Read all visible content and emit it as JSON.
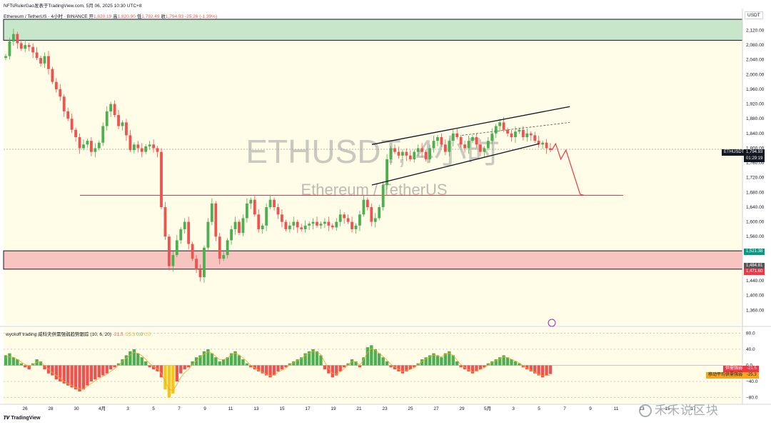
{
  "header": {
    "publisher_line": "NFTsRulerGao发表于TradingView.com,  5月 06, 2025 10:30 UTC+8",
    "symbol_desc": "Ethereum / TetherUS · 4小时 · BINANCE",
    "ohlc": {
      "open_label": "开",
      "open": "1,820.19",
      "high_label": "高",
      "high": "1,820.90",
      "low_label": "低",
      "low": "1,792.49",
      "close_label": "收",
      "close": "1,794.93",
      "change": "-25.26 (-1.39%)"
    },
    "currency": "USDT"
  },
  "watermark": {
    "symbol": "ETHUSDT, 4小时",
    "name": "Ethereum / TetherUS"
  },
  "price_tags": {
    "symbol": "ETHUSDT",
    "last_price": "1,794.93",
    "countdown": "01:29:19",
    "green_level": "1,521.38",
    "mid_level": "1,484.81",
    "red_level": "1,471.60"
  },
  "indicator": {
    "title": "wyckoff trading 威科夫供需强弱趋势跟踪 (10, 6, 20)",
    "v1": "-21.5",
    "v2": "-25.3",
    "v3": "0.0",
    "v4": "0.0",
    "tag1_label": "供需强弱",
    "tag1_value": "-21.5",
    "tag2_label": "移动平均供需强弱",
    "tag2_value": "-25.3"
  },
  "footer": {
    "brand": "TradingView",
    "credit": "禾禾说区块"
  },
  "colors": {
    "up": "#4caf50",
    "down": "#ef5350",
    "resistance_zone": "#c8e6c9",
    "support_zone": "#f8c4c0",
    "background_tint": "#fffde7",
    "channel": "#131722",
    "projection": "#f23645"
  },
  "chart_data": [
    {
      "type": "candlestick",
      "symbol": "ETHUSDT",
      "timeframe": "4小时",
      "y_axis": {
        "ticks": [
          2120,
          2080,
          2040,
          2000,
          1960,
          1920,
          1880,
          1840,
          1800,
          1760,
          1720,
          1680,
          1640,
          1600,
          1560,
          1520,
          1480,
          1440,
          1400,
          1360
        ],
        "tick_labels": [
          "2,120.00",
          "2,080.00",
          "2,040.00",
          "2,000.00",
          "1,960.00",
          "1,920.00",
          "1,880.00",
          "1,840.00",
          "1,800.00",
          "1,760.00",
          "1,720.00",
          "1,680.00",
          "1,640.00",
          "1,600.00",
          "1,560.00",
          "1,520.00",
          "1,480.00",
          "1,440.00",
          "1,400.00",
          "1,360.00"
        ],
        "range": [
          1320,
          2150
        ]
      },
      "x_axis": {
        "ticks": [
          "26",
          "28",
          "30",
          "4月",
          "3",
          "5",
          "7",
          "9",
          "11",
          "13",
          "15",
          "17",
          "19",
          "21",
          "23",
          "25",
          "27",
          "29",
          "5月",
          "3",
          "5",
          "7",
          "9",
          "11",
          "13",
          "15",
          "17"
        ]
      },
      "zones": [
        {
          "label": "resistance",
          "low": 2093,
          "high": 2150,
          "color": "#c8e6c9"
        },
        {
          "label": "support",
          "low": 1471.6,
          "high": 1521.38,
          "color": "#f8c4c0"
        }
      ],
      "levels": [
        {
          "value": 1797,
          "style": "dotted",
          "color": "#9598a1"
        },
        {
          "value": 1672,
          "style": "solid",
          "color": "#f23645"
        }
      ],
      "channel": {
        "upper": [
          {
            "x": "22",
            "y": 1810
          },
          {
            "x": "7",
            "y": 1913
          }
        ],
        "lower": [
          {
            "x": "22",
            "y": 1700
          },
          {
            "x": "5",
            "y": 1812
          }
        ],
        "mid_dashed": [
          {
            "x": "29",
            "y": 1835
          },
          {
            "x": "7",
            "y": 1870
          }
        ]
      },
      "projection": [
        {
          "x": "6",
          "y": 1795
        },
        {
          "x": "6.3",
          "y": 1812
        },
        {
          "x": "6.7",
          "y": 1770
        },
        {
          "x": "7.1",
          "y": 1795
        },
        {
          "x": "8.2",
          "y": 1675
        },
        {
          "x": "8.5",
          "y": 1672
        }
      ],
      "close_series": [
        2050,
        2090,
        2110,
        2085,
        2070,
        2080,
        2075,
        2060,
        2045,
        2030,
        2050,
        2015,
        1980,
        1960,
        1940,
        1900,
        1880,
        1850,
        1830,
        1800,
        1810,
        1820,
        1790,
        1800,
        1815,
        1860,
        1900,
        1920,
        1890,
        1860,
        1870,
        1835,
        1795,
        1810,
        1800,
        1790,
        1805,
        1810,
        1800,
        1790,
        1640,
        1560,
        1480,
        1510,
        1550,
        1580,
        1600,
        1540,
        1500,
        1470,
        1450,
        1530,
        1600,
        1650,
        1560,
        1500,
        1510,
        1550,
        1580,
        1600,
        1570,
        1610,
        1650,
        1660,
        1620,
        1580,
        1590,
        1640,
        1660,
        1640,
        1620,
        1600,
        1580,
        1590,
        1600,
        1585,
        1580,
        1590,
        1595,
        1600,
        1590,
        1595,
        1600,
        1590,
        1585,
        1600,
        1620,
        1610,
        1600,
        1580,
        1590,
        1620,
        1660,
        1640,
        1600,
        1610,
        1640,
        1700,
        1770,
        1800,
        1790,
        1780,
        1790,
        1780,
        1770,
        1790,
        1800,
        1790,
        1770,
        1800,
        1820,
        1830,
        1810,
        1790,
        1820,
        1840,
        1830,
        1810,
        1800,
        1820,
        1830,
        1810,
        1790,
        1800,
        1820,
        1840,
        1860,
        1870,
        1850,
        1840,
        1830,
        1845,
        1850,
        1830,
        1840,
        1835,
        1820,
        1810,
        1815,
        1800,
        1795
      ]
    },
    {
      "type": "bar",
      "name": "wyckoff trading 威科夫供需强弱趋势跟踪 (10, 6, 20)",
      "y_axis": {
        "ticks": [
          80,
          40,
          0,
          -40,
          -80
        ],
        "tick_labels": [
          "80.0",
          "40.0",
          "0.0",
          "−40.0",
          "−80.0"
        ],
        "range": [
          -95,
          95
        ]
      },
      "values": [
        25,
        30,
        20,
        15,
        5,
        -5,
        -10,
        5,
        15,
        10,
        -10,
        -20,
        -25,
        -35,
        -40,
        -45,
        -50,
        -55,
        -60,
        -65,
        -60,
        -50,
        -40,
        -35,
        -30,
        -25,
        -20,
        -10,
        -5,
        5,
        15,
        25,
        35,
        40,
        30,
        20,
        10,
        -5,
        -10,
        -15,
        -30,
        -60,
        -80,
        -70,
        -40,
        -20,
        -10,
        -5,
        10,
        20,
        25,
        35,
        40,
        30,
        20,
        10,
        15,
        20,
        30,
        35,
        25,
        15,
        5,
        -5,
        -10,
        -15,
        -20,
        -25,
        -30,
        -25,
        -15,
        -10,
        -5,
        5,
        10,
        15,
        20,
        30,
        35,
        40,
        35,
        25,
        -10,
        -20,
        -30,
        -25,
        -15,
        -5,
        5,
        15,
        10,
        -5,
        20,
        45,
        50,
        40,
        30,
        20,
        10,
        -5,
        -10,
        -15,
        -20,
        -15,
        -10,
        -5,
        5,
        15,
        20,
        25,
        30,
        25,
        20,
        30,
        35,
        25,
        10,
        -5,
        -10,
        -15,
        -20,
        -15,
        -10,
        -5,
        5,
        10,
        15,
        20,
        25,
        20,
        15,
        10,
        5,
        -5,
        -10,
        -15,
        -20,
        -25,
        -30,
        -25,
        -21.5
      ],
      "ma_values": [
        20,
        22,
        20,
        15,
        8,
        2,
        -2,
        2,
        8,
        8,
        0,
        -10,
        -18,
        -25,
        -32,
        -40,
        -45,
        -50,
        -55,
        -58,
        -58,
        -52,
        -45,
        -38,
        -32,
        -27,
        -22,
        -15,
        -8,
        0,
        10,
        18,
        26,
        32,
        30,
        24,
        15,
        5,
        -3,
        -8,
        -20,
        -40,
        -60,
        -62,
        -48,
        -30,
        -18,
        -10,
        2,
        12,
        20,
        28,
        34,
        30,
        22,
        14,
        14,
        18,
        26,
        30,
        26,
        18,
        10,
        0,
        -6,
        -12,
        -17,
        -22,
        -26,
        -24,
        -17,
        -12,
        -7,
        1,
        7,
        12,
        17,
        25,
        30,
        35,
        33,
        27,
        8,
        -8,
        -20,
        -22,
        -16,
        -8,
        1,
        10,
        9,
        0,
        14,
        32,
        42,
        38,
        30,
        22,
        13,
        3,
        -4,
        -10,
        -15,
        -13,
        -10,
        -6,
        2,
        10,
        16,
        21,
        26,
        23,
        21,
        27,
        30,
        25,
        13,
        2,
        -5,
        -11,
        -16,
        -14,
        -10,
        -6,
        1,
        7,
        12,
        16,
        21,
        19,
        15,
        11,
        6,
        -1,
        -7,
        -12,
        -17,
        -22,
        -26,
        -25,
        -25.3
      ]
    }
  ]
}
